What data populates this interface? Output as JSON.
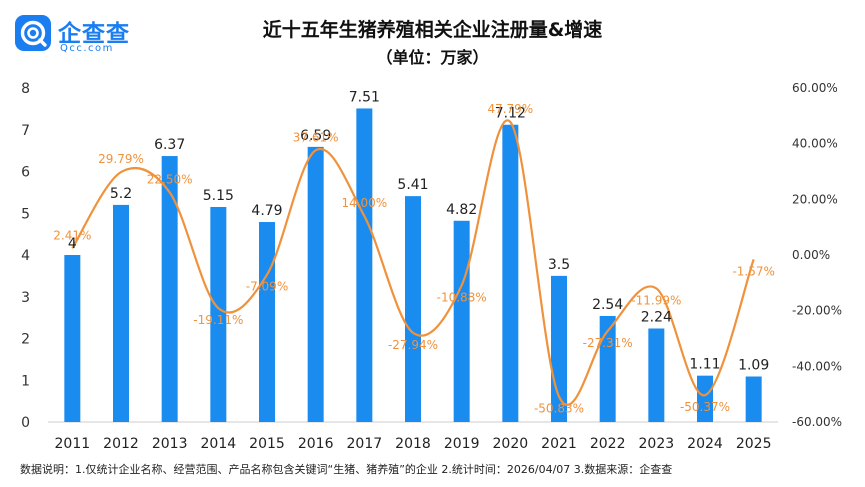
{
  "brand": {
    "name": "企查查",
    "sub": "Qcc.com"
  },
  "title": "近十五年生猪养殖相关企业注册量&增速",
  "subtitle": "（单位：万家）",
  "footnote": "数据说明：1.仅统计企业名称、经营范围、产品名称包含关键词“生猪、猪养殖”的企业  2.统计时间：2026/04/07  3.数据来源：企查查",
  "colors": {
    "bar": "#1a8cf0",
    "line": "#f0923c",
    "label": "#f0923c",
    "brand": "#1a7df0"
  },
  "chart_data": {
    "type": "bar",
    "categories": [
      "2011",
      "2012",
      "2013",
      "2014",
      "2015",
      "2016",
      "2017",
      "2018",
      "2019",
      "2020",
      "2021",
      "2022",
      "2023",
      "2024",
      "2025"
    ],
    "series": [
      {
        "type": "bar",
        "axis": "left",
        "values": [
          4,
          5.2,
          6.37,
          5.15,
          4.79,
          6.59,
          7.51,
          5.41,
          4.82,
          7.12,
          3.5,
          2.54,
          2.24,
          1.11,
          1.09
        ],
        "labels": [
          "4",
          "5.2",
          "6.37",
          "5.15",
          "4.79",
          "6.59",
          "7.51",
          "5.41",
          "4.82",
          "7.12",
          "3.5",
          "2.54",
          "2.24",
          "1.11",
          "1.09"
        ]
      },
      {
        "type": "line",
        "axis": "right",
        "smooth": true,
        "x": [
          "2011",
          "2012",
          "2013",
          "2014",
          "2015",
          "2016",
          "2017",
          "2018",
          "2019",
          "2020",
          "2021",
          "2022",
          "2023",
          "2024",
          "2025"
        ],
        "values": [
          2.41,
          29.79,
          22.5,
          -19.11,
          -7.09,
          37.61,
          14.0,
          -27.94,
          -10.88,
          47.79,
          -50.83,
          -27.31,
          -11.99,
          -50.37,
          -1.57
        ],
        "labels": [
          "2.41%",
          "29.79%",
          "22.50%",
          "-19.11%",
          "-7.09%",
          "37.61%",
          "14.00%",
          "-27.94%",
          "-10.88%",
          "47.79%",
          "-50.83%",
          "-27.31%",
          "-11.99%",
          "-50.37%",
          "-1.57%"
        ]
      }
    ],
    "left_axis": {
      "ylim": [
        0,
        8
      ],
      "ticks": [
        "0",
        "1",
        "2",
        "3",
        "4",
        "5",
        "6",
        "7",
        "8"
      ]
    },
    "right_axis": {
      "ylim": [
        -60,
        60
      ],
      "ticks": [
        "-60.00%",
        "-40.00%",
        "-20.00%",
        "0.00%",
        "20.00%",
        "40.00%",
        "60.00%"
      ]
    },
    "grid": false
  }
}
